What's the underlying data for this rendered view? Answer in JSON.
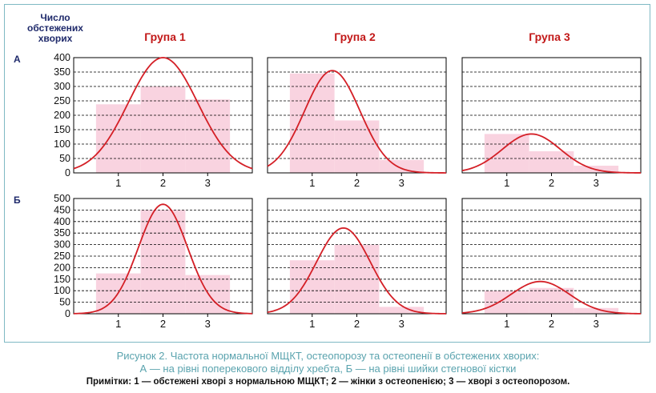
{
  "y_axis_title": "Число\nобстежених\nхворих",
  "group_titles": [
    "Група 1",
    "Група 2",
    "Група 3"
  ],
  "row_labels": [
    "А",
    "Б"
  ],
  "caption": {
    "line1": "Рисунок 2. Частота нормальної МЩКТ, остеопорозу та остеопенії в обстежених хворих:",
    "line2": "А — на рівні поперекового відділу хребта, Б — на рівні шийки стегнової кістки"
  },
  "note": "Примітки: 1 — обстежені хворі з нормальною МЩКТ; 2 — жінки з остеопенією; 3 — хворі з остеопорозом.",
  "colors": {
    "bar": "#f9d3e0",
    "curve": "#d41f26",
    "grid": "#000000",
    "axis_text": "#111111"
  },
  "chart_data": [
    {
      "type": "bar",
      "group": "Група 1",
      "row": "А",
      "categories": [
        "1",
        "2",
        "3"
      ],
      "values": [
        238,
        300,
        255
      ],
      "ylim": [
        0,
        400
      ],
      "yticks": [
        0,
        50,
        100,
        150,
        200,
        250,
        300,
        350,
        400
      ],
      "xlim": [
        0.0,
        4.0
      ],
      "curve": {
        "type": "normal",
        "mean": 2.0,
        "sd": 0.78,
        "peak": 400
      }
    },
    {
      "type": "bar",
      "group": "Група 2",
      "row": "А",
      "categories": [
        "1",
        "2",
        "3"
      ],
      "values": [
        345,
        182,
        45
      ],
      "ylim": [
        0,
        400
      ],
      "yticks": [
        0,
        50,
        100,
        150,
        200,
        250,
        300,
        350,
        400
      ],
      "xlim": [
        0.0,
        4.0
      ],
      "curve": {
        "type": "normal",
        "mean": 1.45,
        "sd": 0.62,
        "peak": 355
      }
    },
    {
      "type": "bar",
      "group": "Група 3",
      "row": "А",
      "categories": [
        "1",
        "2",
        "3"
      ],
      "values": [
        135,
        75,
        25
      ],
      "ylim": [
        0,
        400
      ],
      "yticks": [
        0,
        50,
        100,
        150,
        200,
        250,
        300,
        350,
        400
      ],
      "xlim": [
        0.0,
        4.0
      ],
      "curve": {
        "type": "normal",
        "mean": 1.55,
        "sd": 0.65,
        "peak": 135
      }
    },
    {
      "type": "bar",
      "group": "Група 1",
      "row": "Б",
      "categories": [
        "1",
        "2",
        "3"
      ],
      "values": [
        175,
        450,
        168
      ],
      "ylim": [
        0,
        500
      ],
      "yticks": [
        0,
        50,
        100,
        150,
        200,
        250,
        300,
        350,
        400,
        450,
        500
      ],
      "xlim": [
        0.0,
        4.0
      ],
      "curve": {
        "type": "normal",
        "mean": 2.0,
        "sd": 0.55,
        "peak": 475
      }
    },
    {
      "type": "bar",
      "group": "Група 2",
      "row": "Б",
      "categories": [
        "1",
        "2",
        "3"
      ],
      "values": [
        232,
        300,
        30
      ],
      "ylim": [
        0,
        500
      ],
      "yticks": [
        0,
        50,
        100,
        150,
        200,
        250,
        300,
        350,
        400,
        450,
        500
      ],
      "xlim": [
        0.0,
        4.0
      ],
      "curve": {
        "type": "normal",
        "mean": 1.7,
        "sd": 0.6,
        "peak": 372
      }
    },
    {
      "type": "bar",
      "group": "Група 3",
      "row": "Б",
      "categories": [
        "1",
        "2",
        "3"
      ],
      "values": [
        100,
        112,
        25
      ],
      "ylim": [
        0,
        500
      ],
      "yticks": [
        0,
        50,
        100,
        150,
        200,
        250,
        300,
        350,
        400,
        450,
        500
      ],
      "xlim": [
        0.0,
        4.0
      ],
      "curve": {
        "type": "normal",
        "mean": 1.75,
        "sd": 0.65,
        "peak": 140
      }
    }
  ]
}
